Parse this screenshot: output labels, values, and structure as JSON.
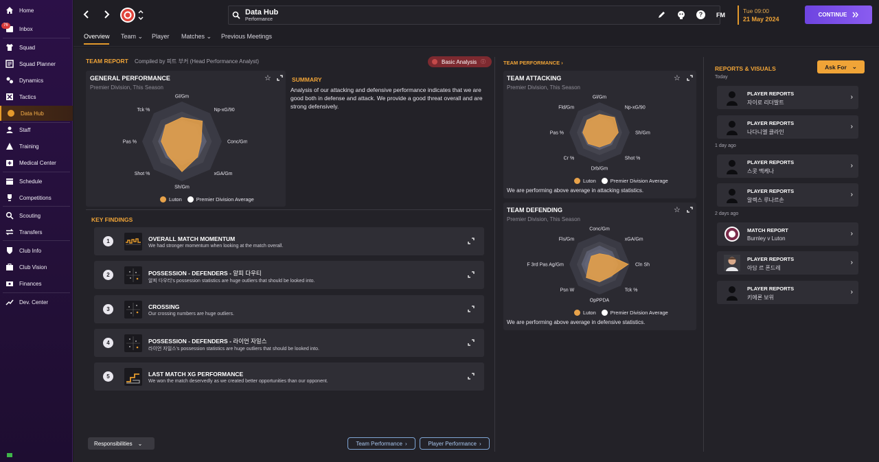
{
  "sidebar": {
    "items": [
      {
        "label": "Home",
        "icon": "home-icon"
      },
      {
        "label": "Inbox",
        "icon": "inbox-icon",
        "badge": "76"
      },
      {
        "label": "Squad",
        "icon": "shirt-icon"
      },
      {
        "label": "Squad Planner",
        "icon": "planner-icon"
      },
      {
        "label": "Dynamics",
        "icon": "dynamics-icon"
      },
      {
        "label": "Tactics",
        "icon": "tactics-icon"
      },
      {
        "label": "Data Hub",
        "icon": "data-hub-icon"
      },
      {
        "label": "Staff",
        "icon": "staff-icon"
      },
      {
        "label": "Training",
        "icon": "training-icon"
      },
      {
        "label": "Medical Center",
        "icon": "medical-icon"
      },
      {
        "label": "Schedule",
        "icon": "calendar-icon"
      },
      {
        "label": "Competitions",
        "icon": "trophy-icon"
      },
      {
        "label": "Scouting",
        "icon": "scouting-icon"
      },
      {
        "label": "Transfers",
        "icon": "transfers-icon"
      },
      {
        "label": "Club Info",
        "icon": "club-info-icon"
      },
      {
        "label": "Club Vision",
        "icon": "club-vision-icon"
      },
      {
        "label": "Finances",
        "icon": "finances-icon"
      },
      {
        "label": "Dev. Center",
        "icon": "dev-center-icon"
      }
    ]
  },
  "header": {
    "title": "Data Hub",
    "subtitle": "Performance",
    "fm": "FM",
    "time": "Tue 09:00",
    "date": "21 May 2024",
    "continue": "CONTINUE"
  },
  "tabs": [
    "Overview",
    "Team",
    "Player",
    "Matches",
    "Previous Meetings"
  ],
  "team_report": {
    "label": "TEAM REPORT",
    "compiled": "Compiled by 피트 부커 (Head Performance Analyst)",
    "basic_analysis": "Basic Analysis"
  },
  "general": {
    "title": "GENERAL PERFORMANCE",
    "sub": "Premier Division, This Season",
    "axes": [
      "Gl/Gm",
      "Np-xG/90",
      "Conc/Gm",
      "xGA/Gm",
      "Sh/Gm",
      "Shot %",
      "Pas %",
      "Tck %"
    ],
    "luton": [
      0.6,
      0.72,
      0.48,
      0.55,
      0.76,
      0.5,
      0.52,
      0.58
    ],
    "average": [
      0.55,
      0.6,
      0.62,
      0.58,
      0.6,
      0.58,
      0.6,
      0.6
    ]
  },
  "summary": {
    "label": "SUMMARY",
    "text": "Analysis of our attacking and defensive performance indicates that we are good both in defense and attack. We provide a good threat overall and are strong defensively."
  },
  "legend": {
    "luton": "Luton",
    "average": "Premier Division Average"
  },
  "key_findings": {
    "label": "KEY FINDINGS",
    "items": [
      {
        "num": "1",
        "title": "OVERALL MATCH MOMENTUM",
        "desc": "We had stronger momentum when looking at the match overall."
      },
      {
        "num": "2",
        "title": "POSSESSION - DEFENDERS - ",
        "name": "알피 다우티",
        "desc": "알피 다우티's possession statistics are huge outliers that should be looked into."
      },
      {
        "num": "3",
        "title": "CROSSING",
        "desc": "Our crossing numbers are huge outliers."
      },
      {
        "num": "4",
        "title": "POSSESSION - DEFENDERS - ",
        "name": "라이언 자일스",
        "desc": "라이언 자일스's possession statistics are huge outliers that should be looked into."
      },
      {
        "num": "5",
        "title": "LAST MATCH XG PERFORMANCE",
        "desc": "We won the match deservedly as we created better opportunities than our opponent."
      }
    ]
  },
  "bottom": {
    "responsibilities": "Responsibilities",
    "team_perf": "Team Performance",
    "player_perf": "Player Performance"
  },
  "team_performance": {
    "label": "TEAM PERFORMANCE",
    "attacking": {
      "title": "TEAM ATTACKING",
      "sub": "Premier Division, This Season",
      "axes": [
        "Gl/Gm",
        "Np-xG/90",
        "Sh/Gm",
        "Shot %",
        "Drb/Gm",
        "Cr %",
        "Pas %",
        "Fld/Gm"
      ],
      "luton": [
        0.6,
        0.7,
        0.62,
        0.5,
        0.48,
        0.52,
        0.55,
        0.58
      ],
      "average": [
        0.58,
        0.58,
        0.6,
        0.58,
        0.58,
        0.58,
        0.6,
        0.58
      ],
      "note": "We are performing above average in attacking statistics."
    },
    "defending": {
      "title": "TEAM DEFENDING",
      "sub": "Premier Division, This Season",
      "axes": [
        "Conc/Gm",
        "xGA/Gm",
        "Cln Sh",
        "Tck %",
        "OpPPDA",
        "Psn W",
        "F 3rd Pas Ag/Gm",
        "Fls/Gm"
      ],
      "luton": [
        0.35,
        0.42,
        0.95,
        0.55,
        0.58,
        0.62,
        0.35,
        0.38
      ],
      "average": [
        0.62,
        0.6,
        0.62,
        0.6,
        0.6,
        0.6,
        0.6,
        0.6
      ],
      "note": "We are performing above average in defensive statistics."
    }
  },
  "reports": {
    "label": "REPORTS & VISUALS",
    "ask_for": "Ask For",
    "days": [
      "Today",
      "1 day ago",
      "2 days ago"
    ],
    "items": [
      {
        "type": "PLAYER REPORTS",
        "name": "자이로 리더발트"
      },
      {
        "type": "PLAYER REPORTS",
        "name": "나다니엘 클라인"
      },
      {
        "type": "PLAYER REPORTS",
        "name": "스콧 맥케나"
      },
      {
        "type": "PLAYER REPORTS",
        "name": "알렉스 루나르손"
      },
      {
        "type": "MATCH REPORT",
        "name": "Burnley v Luton"
      },
      {
        "type": "PLAYER REPORTS",
        "name": "아담 르 폰드레"
      },
      {
        "type": "PLAYER REPORTS",
        "name": "키에론 보위"
      }
    ]
  },
  "colors": {
    "accent": "#e49a2c",
    "luton": "#e7a24a",
    "average": "#ffffff",
    "continue": "#7a4fe8"
  }
}
